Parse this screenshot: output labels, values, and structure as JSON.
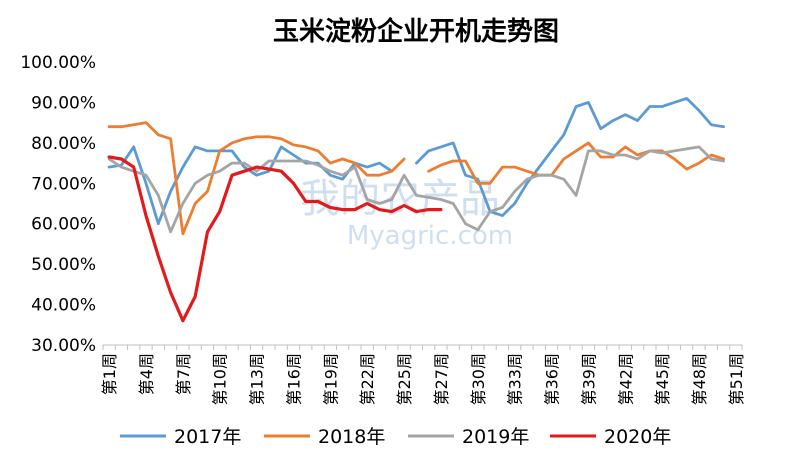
{
  "chart_data": {
    "type": "line",
    "title": "玉米淀粉企业开机走势图",
    "xlabel": "",
    "ylabel": "",
    "ylim": [
      30,
      100
    ],
    "yticks": [
      "30.00%",
      "40.00%",
      "50.00%",
      "60.00%",
      "70.00%",
      "80.00%",
      "90.00%",
      "100.00%"
    ],
    "x_tick_labels": [
      "第1周",
      "第4周",
      "第7周",
      "第10周",
      "第13周",
      "第16周",
      "第19周",
      "第22周",
      "第25周",
      "第27周",
      "第30周",
      "第33周",
      "第36周",
      "第39周",
      "第42周",
      "第45周",
      "第48周",
      "第51周"
    ],
    "legend_position": "bottom",
    "watermark": {
      "cn": "我的农产品",
      "en": "Myagric.com"
    },
    "series": [
      {
        "name": "2017年",
        "color": "#5b9bd5",
        "values": [
          74,
          74.5,
          79,
          70,
          60,
          68,
          74,
          79,
          78,
          78,
          78,
          74,
          72,
          73,
          79,
          77,
          75,
          75,
          72,
          71,
          75,
          74,
          75,
          73,
          null,
          75,
          78,
          79,
          80,
          72,
          71,
          63,
          62,
          65,
          70,
          74,
          78,
          82,
          89,
          90,
          83.5,
          85.5,
          87,
          85.5,
          89,
          89,
          90,
          91,
          88,
          84.5,
          84
        ]
      },
      {
        "name": "2018年",
        "color": "#ed7d31",
        "values": [
          84,
          84,
          84.5,
          85,
          82,
          81,
          57.5,
          65,
          68,
          78,
          80,
          81,
          81.5,
          81.5,
          81,
          79.5,
          79,
          78,
          75,
          76,
          75,
          72,
          72,
          73,
          76,
          null,
          73,
          74.5,
          75.5,
          75.5,
          70,
          70,
          74,
          74,
          73,
          72,
          72,
          76,
          78,
          80,
          76.5,
          76.5,
          79,
          77,
          78,
          78,
          76,
          73.5,
          75,
          77,
          76
        ]
      },
      {
        "name": "2019年",
        "color": "#a5a5a5",
        "values": [
          76,
          74,
          73,
          72,
          67,
          58,
          65,
          70,
          72,
          73,
          75,
          75,
          73,
          75.5,
          75.5,
          75.5,
          75.5,
          74.5,
          73,
          72,
          74,
          66,
          65,
          66,
          72,
          67,
          66.5,
          66,
          65,
          60,
          58.5,
          63,
          64,
          68,
          71,
          72,
          72,
          71,
          67,
          78,
          78,
          77,
          77,
          76,
          78,
          77.5,
          78,
          78.5,
          79,
          76,
          75.5
        ]
      },
      {
        "name": "2020年",
        "color": "#e31a1c",
        "values": [
          76.5,
          76,
          74,
          62,
          52,
          43,
          36,
          42,
          58,
          63,
          72,
          73,
          74,
          73.5,
          73,
          70,
          65.5,
          65.5,
          64,
          63.5,
          63.5,
          65,
          63.5,
          63,
          64.5,
          63,
          63.5,
          63.5
        ]
      }
    ]
  }
}
